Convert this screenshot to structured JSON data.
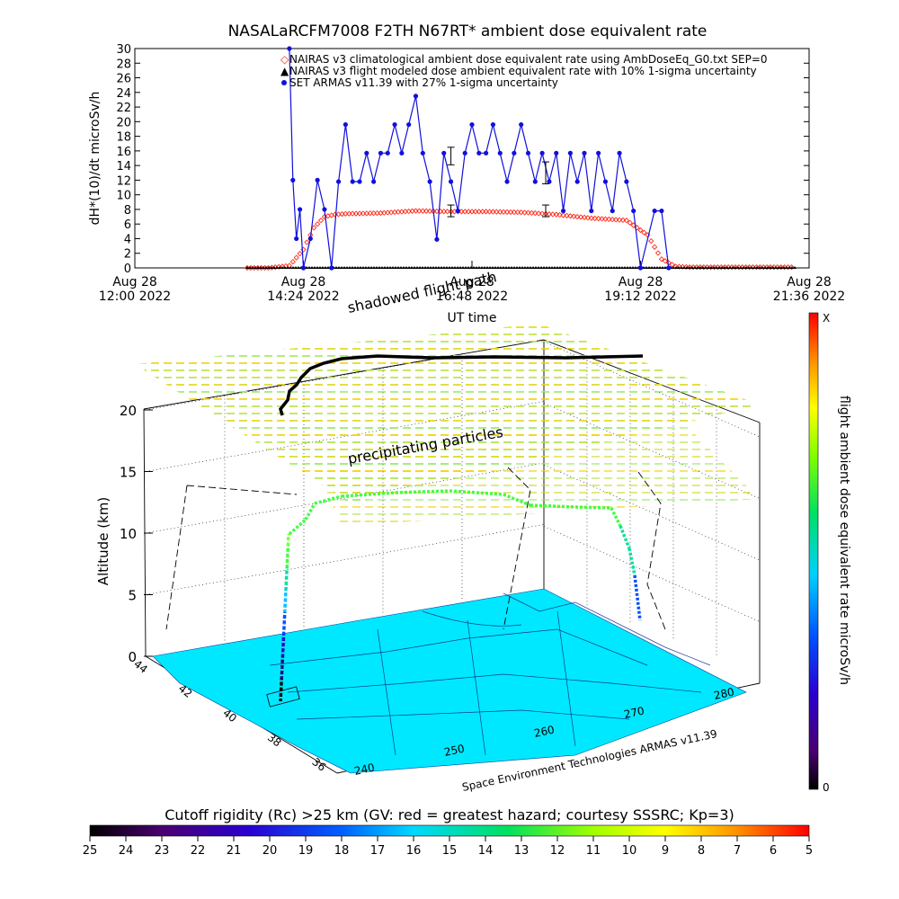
{
  "title": "NASALaRCFM7008  F2TH N67RT* ambient dose equivalent rate",
  "chart_data": [
    {
      "type": "line",
      "ylabel": "dH*(10)/dt microSv/h",
      "xlabel": "UT time",
      "ylim": [
        0,
        30
      ],
      "yticks": [
        "0",
        "2",
        "4",
        "6",
        "8",
        "10",
        "12",
        "14",
        "16",
        "18",
        "20",
        "22",
        "24",
        "26",
        "28",
        "30"
      ],
      "xtick_labels": [
        {
          "day": "Aug 28",
          "time": "12:00 2022"
        },
        {
          "day": "Aug 28",
          "time": "14:24 2022"
        },
        {
          "day": "Aug 28",
          "time": "16:48 2022"
        },
        {
          "day": "Aug 28",
          "time": "19:12 2022"
        },
        {
          "day": "Aug 28",
          "time": "21:36 2022"
        }
      ],
      "xlim_hours": [
        12.0,
        21.6
      ],
      "legend_placement": "top-right",
      "series": [
        {
          "name": "NAIRAS v3 climatological ambient dose equivalent rate using AmbDoseEq_G0.txt SEP=0",
          "color": "#ff2a1a",
          "marker": "diamond",
          "x": [
            13.6,
            13.9,
            14.2,
            14.4,
            14.55,
            14.7,
            14.85,
            15.0,
            15.5,
            16.0,
            16.5,
            17.0,
            17.5,
            18.0,
            18.5,
            19.0,
            19.3,
            19.5,
            19.7,
            19.9,
            20.2,
            20.6,
            21.0,
            21.4
          ],
          "values": [
            0,
            0,
            0.3,
            2.5,
            5.5,
            7.0,
            7.3,
            7.4,
            7.5,
            7.8,
            7.7,
            7.7,
            7.6,
            7.3,
            6.8,
            6.5,
            4.5,
            1.2,
            0.2,
            0.1,
            0.1,
            0.1,
            0.1,
            0.1
          ]
        },
        {
          "name": "NAIRAS v3 flight modeled dose ambient equivalent rate with 10% 1-sigma uncertainty",
          "color": "#000000",
          "marker": "triangle",
          "x": [
            13.6,
            21.4
          ],
          "values": [
            0,
            0
          ]
        },
        {
          "name": "SET ARMAS v11.39 with 27% 1-sigma uncertainty",
          "color": "#1010dd",
          "marker": "circle",
          "x": [
            14.2,
            14.25,
            14.3,
            14.35,
            14.4,
            14.5,
            14.6,
            14.7,
            14.8,
            14.9,
            15.0,
            15.1,
            15.2,
            15.3,
            15.4,
            15.5,
            15.6,
            15.7,
            15.8,
            15.9,
            16.0,
            16.1,
            16.2,
            16.3,
            16.4,
            16.5,
            16.6,
            16.7,
            16.8,
            16.9,
            17.0,
            17.1,
            17.2,
            17.3,
            17.4,
            17.5,
            17.6,
            17.7,
            17.8,
            17.9,
            18.0,
            18.1,
            18.2,
            18.3,
            18.4,
            18.5,
            18.6,
            18.7,
            18.8,
            18.9,
            19.0,
            19.1,
            19.2,
            19.4,
            19.5,
            19.6
          ],
          "values": [
            30,
            12,
            4,
            8,
            0,
            4,
            12,
            8,
            0,
            11.8,
            19.6,
            11.8,
            11.8,
            15.7,
            11.8,
            15.7,
            15.7,
            19.6,
            15.7,
            19.6,
            23.5,
            15.7,
            11.8,
            3.9,
            15.7,
            11.8,
            7.8,
            15.7,
            19.6,
            15.7,
            15.7,
            19.6,
            15.7,
            11.8,
            15.7,
            19.6,
            15.7,
            11.8,
            15.7,
            11.8,
            15.7,
            7.8,
            15.7,
            11.8,
            15.7,
            7.8,
            15.7,
            11.8,
            7.8,
            15.7,
            11.8,
            7.8,
            0,
            7.8,
            7.8,
            0
          ]
        }
      ],
      "error_bars": [
        {
          "x": 16.5,
          "y": 15.3,
          "err": 1.2
        },
        {
          "x": 16.5,
          "y": 7.8,
          "err": 0.8
        },
        {
          "x": 17.85,
          "y": 13.0,
          "err": 1.5
        },
        {
          "x": 17.85,
          "y": 7.8,
          "err": 0.8
        }
      ]
    },
    {
      "type": "scatter",
      "ylabel": "Altitude (km)",
      "zticks": [
        "0",
        "5",
        "10",
        "15",
        "20"
      ],
      "lat_ticks": [
        "44",
        "42",
        "40",
        "38",
        "36"
      ],
      "lon_ticks": [
        "240",
        "250",
        "260",
        "270",
        "280"
      ],
      "annotations": [
        "shadowed flight path",
        "precipitating particles"
      ],
      "credit": "Space Environment Technologies ARMAS v11.39",
      "colorbar": {
        "label": "flight ambient dose equivalent rate microSv/h",
        "top_label": "X",
        "bottom_label": "0"
      },
      "flight_altitude_km": [
        0,
        2,
        4,
        6,
        8,
        10,
        11,
        12,
        12.5,
        12.8,
        12.8,
        12.8,
        12.6,
        12.0,
        12.0,
        11.0,
        8.0,
        5.0,
        3.0
      ]
    }
  ],
  "rigidity_bar": {
    "label": "Cutoff rigidity (Rc) >25 km (GV: red = greatest hazard; courtesy SSSRC; Kp=3)",
    "ticks": [
      "25",
      "24",
      "23",
      "22",
      "21",
      "20",
      "19",
      "18",
      "17",
      "16",
      "15",
      "14",
      "13",
      "12",
      "11",
      "10",
      "9",
      "8",
      "7",
      "6",
      "5"
    ]
  }
}
